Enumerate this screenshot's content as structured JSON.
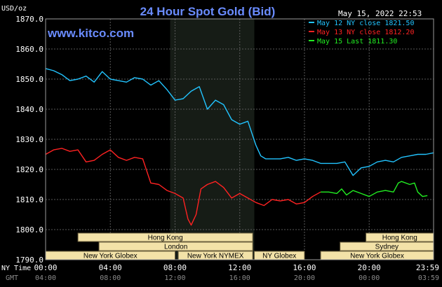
{
  "chart_data": {
    "type": "line",
    "title": "24 Hour Spot Gold (Bid)",
    "site": "www.kitco.com",
    "timestamp": "May 15, 2022 22:53",
    "unit_label": "USD/oz",
    "ylim": [
      1790,
      1870
    ],
    "y_ticks": [
      "1870.0",
      "1860.0",
      "1850.0",
      "1840.0",
      "1830.0",
      "1820.0",
      "1810.0",
      "1800.0",
      "1790.0"
    ],
    "y_tick_values": [
      1870,
      1860,
      1850,
      1840,
      1830,
      1820,
      1810,
      1800,
      1790
    ],
    "x_axis_label_top": "NY Time",
    "x_axis_label_bottom": "GMT",
    "x_ticks_ny": [
      "00:00",
      "04:00",
      "08:00",
      "12:00",
      "16:00",
      "20:00",
      "23:59"
    ],
    "x_ticks_gmt": [
      "04:00",
      "08:00",
      "12:00",
      "16:00",
      "20:00",
      "00:00",
      "03:59"
    ],
    "x_tick_hours": [
      0,
      4,
      8,
      12,
      16,
      20,
      23.98
    ],
    "legend": [
      {
        "label": "May 12 NY close 1821.50",
        "color": "#22c4ff"
      },
      {
        "label": "May 13 NY close 1812.20",
        "color": "#ff2222"
      },
      {
        "label": "May 15 Last 1811.30",
        "color": "#22ee22"
      }
    ],
    "highlight_hours": [
      7.7,
      12.9
    ],
    "sessions": [
      {
        "name": "Hong Kong",
        "start": 2.0,
        "end": 12.8,
        "row": 0
      },
      {
        "name": "London",
        "start": 3.3,
        "end": 12.8,
        "row": 1
      },
      {
        "name": "New York Globex",
        "start": 0.0,
        "end": 8.0,
        "row": 2
      },
      {
        "name": "New York NYMEX",
        "start": 8.2,
        "end": 12.8,
        "row": 2
      },
      {
        "name": "NY Globex",
        "start": 12.9,
        "end": 16.0,
        "row": 2
      },
      {
        "name": "Hong Kong",
        "start": 19.8,
        "end": 23.98,
        "row": 0
      },
      {
        "name": "Sydney",
        "start": 18.2,
        "end": 23.98,
        "row": 1
      },
      {
        "name": "New York Globex",
        "start": 17.0,
        "end": 23.98,
        "row": 2
      }
    ],
    "series": [
      {
        "name": "May 12 NY close 1821.50",
        "color": "#22c4ff",
        "x": [
          0,
          0.5,
          1.0,
          1.5,
          2.0,
          2.5,
          3.0,
          3.5,
          4.0,
          4.5,
          5.0,
          5.5,
          6.0,
          6.5,
          7.0,
          7.5,
          8.0,
          8.5,
          9.0,
          9.5,
          10.0,
          10.5,
          11.0,
          11.5,
          12.0,
          12.5,
          13.0,
          13.3,
          13.6,
          14.0,
          14.5,
          15.0,
          15.5,
          16.0,
          16.5,
          17.0,
          17.5,
          18.0,
          18.5,
          19.0,
          19.5,
          20.0,
          20.5,
          21.0,
          21.5,
          22.0,
          22.5,
          23.0,
          23.5,
          23.98
        ],
        "values": [
          1853.5,
          1852.8,
          1851.5,
          1849.5,
          1850.0,
          1851.0,
          1849.0,
          1852.5,
          1850.0,
          1849.5,
          1849.0,
          1850.5,
          1850.0,
          1848.0,
          1849.5,
          1846.5,
          1843.0,
          1843.5,
          1846.0,
          1847.5,
          1840.0,
          1843.0,
          1841.5,
          1836.5,
          1835.0,
          1836.0,
          1828.0,
          1824.5,
          1823.5,
          1823.5,
          1823.5,
          1824.0,
          1823.0,
          1823.5,
          1823.0,
          1822.0,
          1822.0,
          1822.0,
          1822.5,
          1818.0,
          1820.5,
          1821.0,
          1822.5,
          1823.0,
          1822.5,
          1824.0,
          1824.5,
          1825.0,
          1825.0,
          1825.5
        ]
      },
      {
        "name": "May 13 NY close 1812.20",
        "color": "#ff2222",
        "x": [
          0,
          0.5,
          1.0,
          1.5,
          2.0,
          2.5,
          3.0,
          3.5,
          4.0,
          4.5,
          5.0,
          5.5,
          6.0,
          6.5,
          7.0,
          7.5,
          8.0,
          8.5,
          8.8,
          9.0,
          9.3,
          9.6,
          10.0,
          10.5,
          11.0,
          11.5,
          12.0,
          12.5,
          13.0,
          13.5,
          14.0,
          14.5,
          15.0,
          15.5,
          16.0,
          16.5,
          17.0
        ],
        "values": [
          1825.0,
          1826.5,
          1827.0,
          1826.0,
          1826.5,
          1822.5,
          1823.0,
          1825.0,
          1826.5,
          1824.0,
          1823.0,
          1824.0,
          1823.5,
          1815.5,
          1815.0,
          1813.0,
          1812.0,
          1810.5,
          1803.5,
          1801.5,
          1805.0,
          1813.5,
          1815.0,
          1816.0,
          1814.0,
          1810.5,
          1812.0,
          1810.5,
          1809.0,
          1808.0,
          1810.0,
          1809.5,
          1810.0,
          1808.5,
          1809.0,
          1811.0,
          1812.5
        ]
      },
      {
        "name": "May 15 Last 1811.30",
        "color": "#22ee22",
        "x": [
          17.0,
          17.5,
          18.0,
          18.3,
          18.6,
          19.0,
          19.5,
          20.0,
          20.5,
          21.0,
          21.5,
          21.8,
          22.0,
          22.5,
          22.8,
          23.0,
          23.3,
          23.6
        ],
        "values": [
          1812.5,
          1812.5,
          1812.0,
          1813.5,
          1811.5,
          1813.0,
          1812.0,
          1811.0,
          1812.5,
          1813.0,
          1812.5,
          1815.5,
          1816.0,
          1815.0,
          1815.5,
          1812.5,
          1811.0,
          1811.3
        ]
      }
    ]
  }
}
